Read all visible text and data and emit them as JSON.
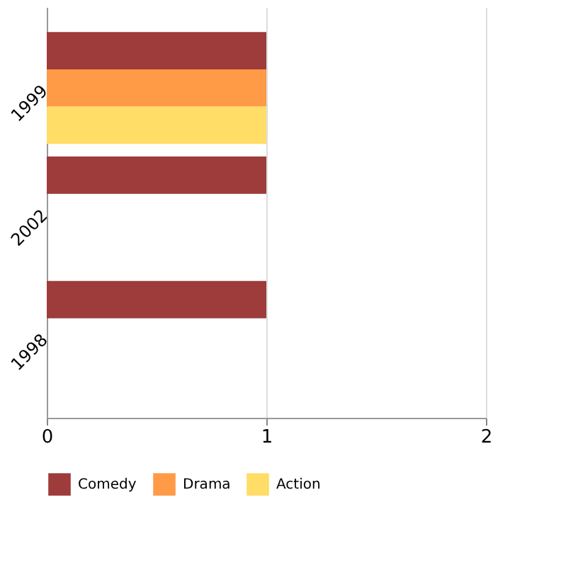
{
  "chart_data": {
    "type": "bar",
    "orientation": "horizontal",
    "categories": [
      "1999",
      "2002",
      "1998"
    ],
    "series": [
      {
        "name": "Comedy",
        "color": "#9e3b3b",
        "values": [
          1,
          1,
          1
        ]
      },
      {
        "name": "Drama",
        "color": "#ff9a47",
        "values": [
          1,
          null,
          null
        ]
      },
      {
        "name": "Action",
        "color": "#ffdd66",
        "values": [
          1,
          null,
          null
        ]
      }
    ],
    "xlim": [
      0,
      2
    ],
    "xticks": [
      0,
      1,
      2
    ],
    "grid": "x",
    "legend": "bottom"
  }
}
